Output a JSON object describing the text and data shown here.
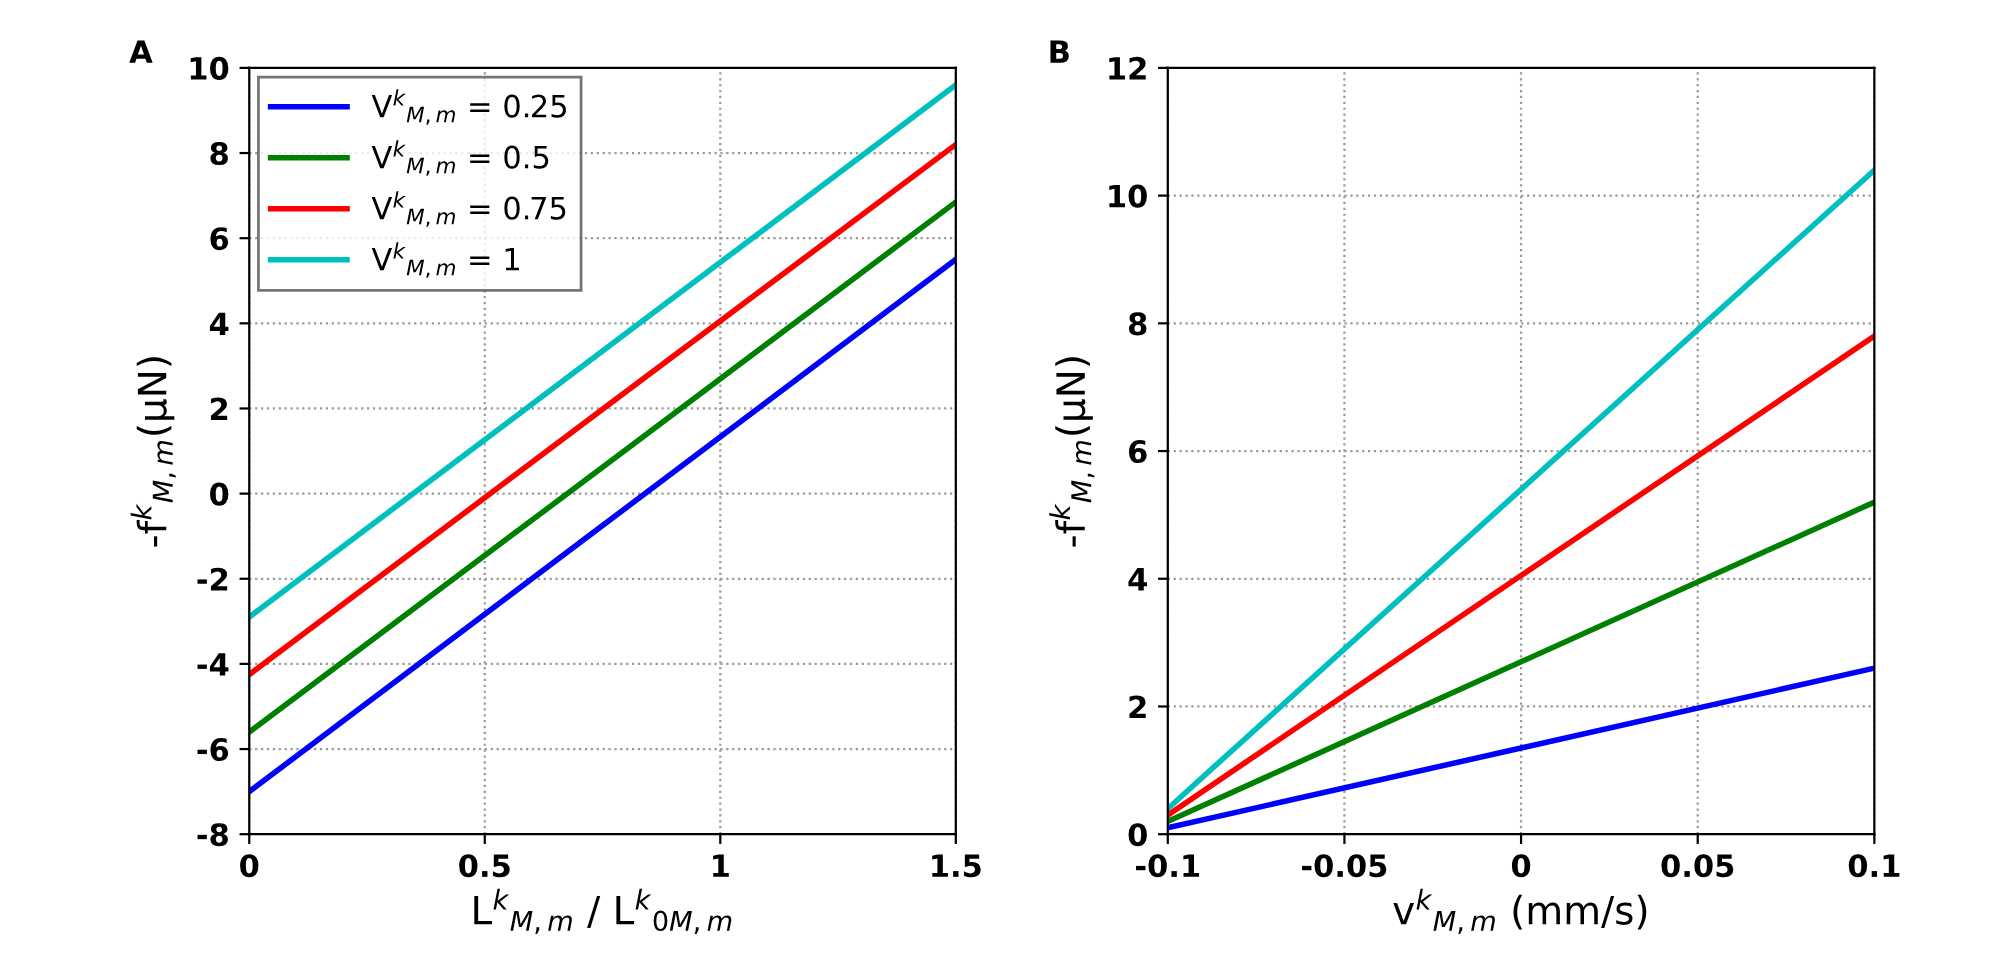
{
  "chart_data": [
    {
      "type": "line",
      "title": "A",
      "xlabel": "L$^{k}$$_{M,m}$ / L$^{k}$$_{0M,m}$",
      "ylabel": "-f$^{k}$$_{M,m}$(μN)",
      "x": [
        0,
        0.75,
        1.5
      ],
      "series": [
        {
          "name": "V$^{k}$$_{M,m}$ = 0.25",
          "color": "#0000ff",
          "values": [
            -7,
            -0.75,
            5.5
          ]
        },
        {
          "name": "V$^{k}$$_{M,m}$ = 0.5",
          "color": "#008000",
          "values": [
            -5.6,
            0.62,
            6.85
          ]
        },
        {
          "name": "V$^{k}$$_{M,m}$ = 0.75",
          "color": "#ff0000",
          "values": [
            -4.25,
            1.98,
            8.2
          ]
        },
        {
          "name": "V$^{k}$$_{M,m}$ = 1",
          "color": "#00bfbf",
          "values": [
            -2.9,
            3.35,
            9.6
          ]
        }
      ],
      "xlim": [
        0,
        1.5
      ],
      "xticks": [
        0,
        0.5,
        1,
        1.5
      ],
      "ylim": [
        -8,
        10
      ],
      "yticks": [
        -8,
        -6,
        -4,
        -2,
        0,
        2,
        4,
        6,
        8,
        10
      ],
      "grid": true,
      "legend": "top left",
      "line_style": "solid",
      "marker": "none"
    },
    {
      "type": "line",
      "title": "B",
      "xlabel": "v$^{k}$$_{M,m}$ (mm/s)",
      "ylabel": "-f$^{k}$$_{M,m}$(μN)",
      "x": [
        -0.1,
        0,
        0.1
      ],
      "series": [
        {
          "color": "#0000ff",
          "values": [
            0.1,
            1.35,
            2.6
          ]
        },
        {
          "color": "#008000",
          "values": [
            0.2,
            2.7,
            5.2
          ]
        },
        {
          "color": "#ff0000",
          "values": [
            0.3,
            4.05,
            7.8
          ]
        },
        {
          "color": "#00bfbf",
          "values": [
            0.4,
            5.4,
            10.4
          ]
        }
      ],
      "xlim": [
        -0.1,
        0.1
      ],
      "xticks": [
        -0.1,
        -0.05,
        0,
        0.05,
        0.1
      ],
      "ylim": [
        0,
        12
      ],
      "yticks": [
        0,
        2,
        4,
        6,
        8,
        10,
        12
      ],
      "grid": true,
      "line_style": "solid",
      "marker": "none"
    }
  ]
}
